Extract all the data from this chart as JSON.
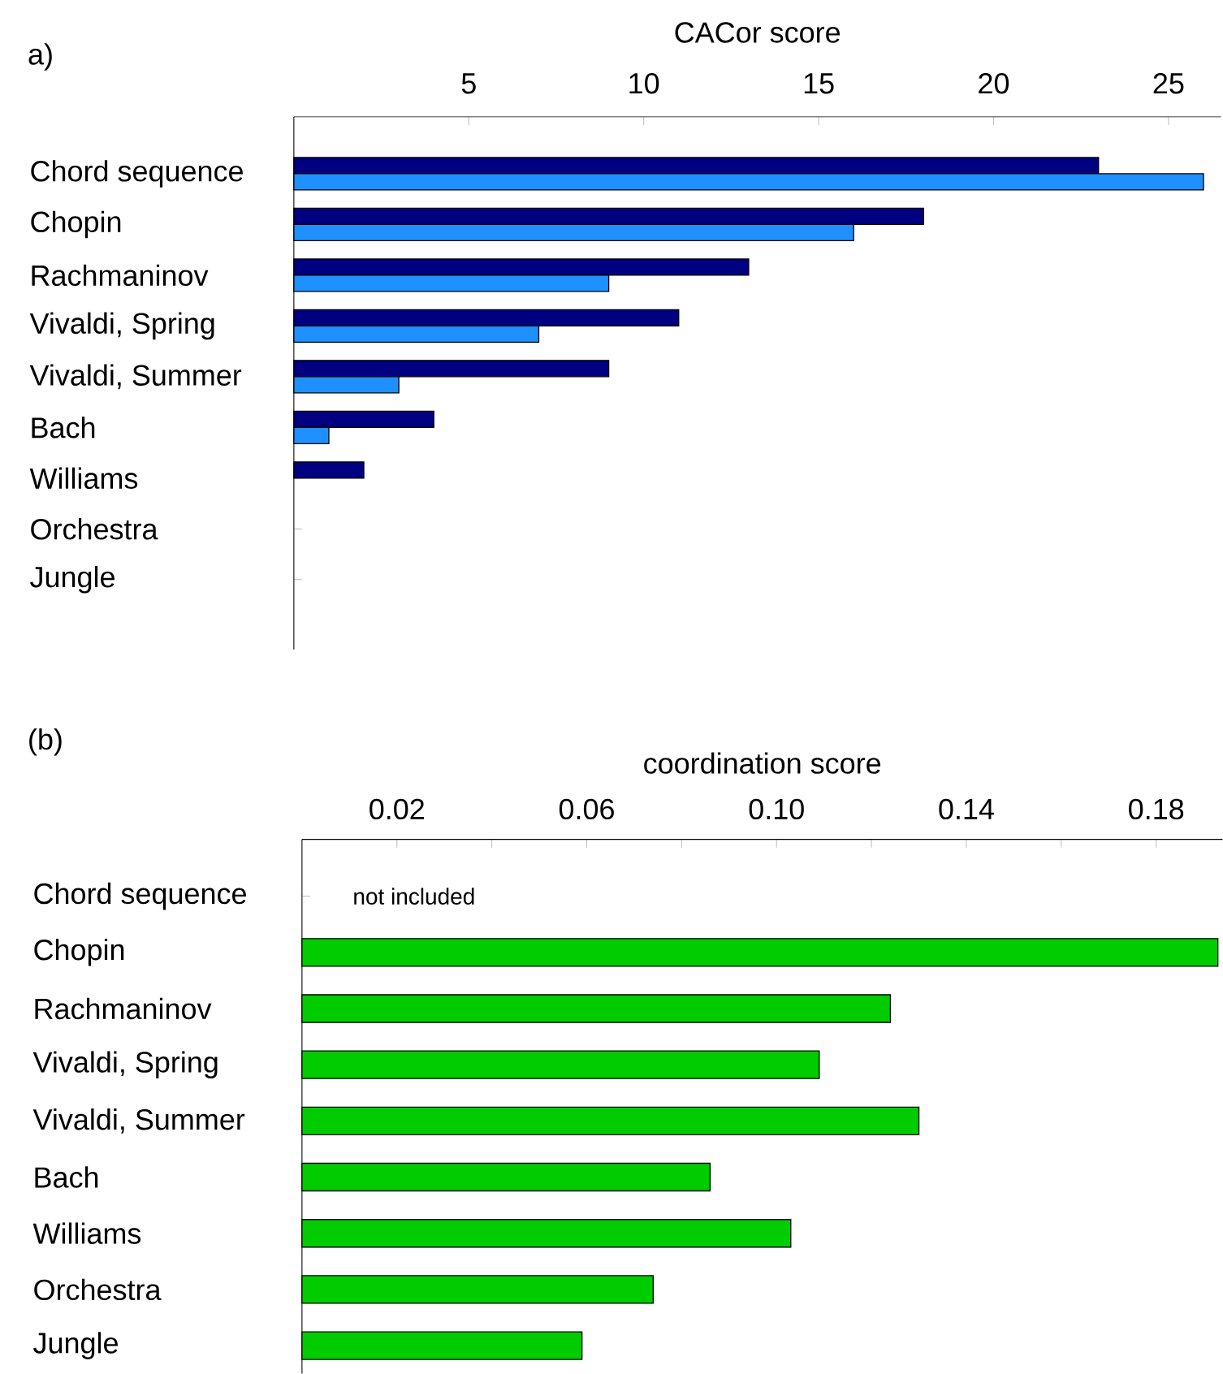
{
  "chart_data": [
    {
      "type": "bar",
      "orientation": "horizontal",
      "title": "a)",
      "xlabel": "CACor score",
      "categories": [
        "Chord sequence",
        "Chopin",
        "Rachmaninov",
        "Vivaldi, Spring",
        "Vivaldi, Summer",
        "Bach",
        "Williams",
        "Orchestra",
        "Jungle"
      ],
      "series": [
        {
          "color": "#000080",
          "values": [
            23.0,
            18.0,
            13.0,
            11.0,
            9.0,
            4.0,
            2.0,
            null,
            null
          ]
        },
        {
          "color": "#1e90ff",
          "values": [
            26.0,
            16.0,
            9.0,
            7.0,
            3.0,
            1.0,
            null,
            null,
            null
          ]
        }
      ],
      "xlim": [
        0,
        26.5
      ],
      "xticks": [
        5,
        10,
        15,
        20,
        25
      ]
    },
    {
      "type": "bar",
      "orientation": "horizontal",
      "title": "(b)",
      "xlabel": "coordination score",
      "categories": [
        "Chord sequence",
        "Chopin",
        "Rachmaninov",
        "Vivaldi, Spring",
        "Vivaldi, Summer",
        "Bach",
        "Williams",
        "Orchestra",
        "Jungle"
      ],
      "series": [
        {
          "color": "#00cc00",
          "values": [
            null,
            0.193,
            0.124,
            0.109,
            0.13,
            0.086,
            0.103,
            0.074,
            0.059
          ]
        }
      ],
      "xlim": [
        0,
        0.194
      ],
      "xticks": [
        {
          "value": 0.02,
          "label": "0.02"
        },
        {
          "value": 0.04,
          "label": null
        },
        {
          "value": 0.06,
          "label": "0.06"
        },
        {
          "value": 0.08,
          "label": null
        },
        {
          "value": 0.1,
          "label": "0.10"
        },
        {
          "value": 0.12,
          "label": null
        },
        {
          "value": 0.14,
          "label": "0.14"
        },
        {
          "value": 0.16,
          "label": null
        },
        {
          "value": 0.18,
          "label": "0.18"
        }
      ],
      "annotations": [
        "not included"
      ]
    }
  ]
}
